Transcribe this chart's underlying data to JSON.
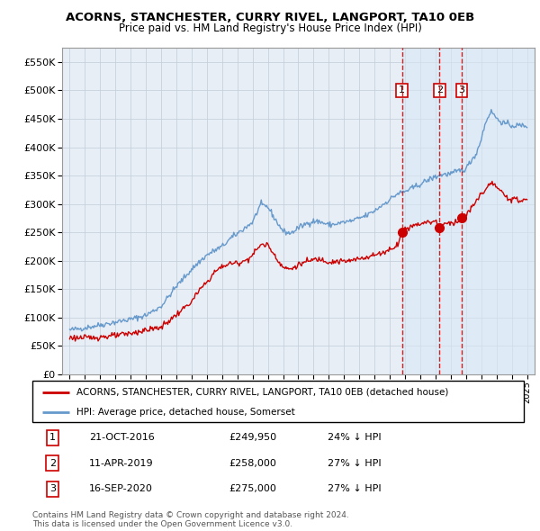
{
  "title": "ACORNS, STANCHESTER, CURRY RIVEL, LANGPORT, TA10 0EB",
  "subtitle": "Price paid vs. HM Land Registry's House Price Index (HPI)",
  "legend_line1": "ACORNS, STANCHESTER, CURRY RIVEL, LANGPORT, TA10 0EB (detached house)",
  "legend_line2": "HPI: Average price, detached house, Somerset",
  "footer_line1": "Contains HM Land Registry data © Crown copyright and database right 2024.",
  "footer_line2": "This data is licensed under the Open Government Licence v3.0.",
  "transactions": [
    {
      "num": 1,
      "date": "21-OCT-2016",
      "price_str": "£249,950",
      "pct": "24%",
      "x_year": 2016.8,
      "price_val": 249950
    },
    {
      "num": 2,
      "date": "11-APR-2019",
      "price_str": "£258,000",
      "pct": "27%",
      "x_year": 2019.27,
      "price_val": 258000
    },
    {
      "num": 3,
      "date": "16-SEP-2020",
      "price_str": "£275,000",
      "pct": "27%",
      "x_year": 2020.71,
      "price_val": 275000
    }
  ],
  "hpi_color": "#6699cc",
  "price_color": "#cc0000",
  "background_plot": "#e8eef5",
  "highlight_bg": "#d8e8f5",
  "grid_color": "#c0ccd8",
  "dashed_line_color": "#cc0000",
  "ylim": [
    0,
    575000
  ],
  "yticks": [
    0,
    50000,
    100000,
    150000,
    200000,
    250000,
    300000,
    350000,
    400000,
    450000,
    500000,
    550000
  ],
  "xlim_start": 1994.5,
  "xlim_end": 2025.5,
  "highlight_start": 2016.8,
  "hpi_keypoints": [
    [
      1995.0,
      78000
    ],
    [
      1996.0,
      82000
    ],
    [
      1997.0,
      87000
    ],
    [
      1998.0,
      92000
    ],
    [
      1999.0,
      97000
    ],
    [
      2000.0,
      104000
    ],
    [
      2001.0,
      120000
    ],
    [
      2002.0,
      155000
    ],
    [
      2003.0,
      185000
    ],
    [
      2003.5,
      198000
    ],
    [
      2004.0,
      210000
    ],
    [
      2004.5,
      218000
    ],
    [
      2005.0,
      225000
    ],
    [
      2005.5,
      238000
    ],
    [
      2006.0,
      248000
    ],
    [
      2006.5,
      258000
    ],
    [
      2007.0,
      268000
    ],
    [
      2007.5,
      298000
    ],
    [
      2008.0,
      295000
    ],
    [
      2008.5,
      272000
    ],
    [
      2009.0,
      252000
    ],
    [
      2009.5,
      248000
    ],
    [
      2010.0,
      258000
    ],
    [
      2010.5,
      265000
    ],
    [
      2011.0,
      270000
    ],
    [
      2011.5,
      268000
    ],
    [
      2012.0,
      263000
    ],
    [
      2012.5,
      265000
    ],
    [
      2013.0,
      268000
    ],
    [
      2013.5,
      270000
    ],
    [
      2014.0,
      275000
    ],
    [
      2014.5,
      280000
    ],
    [
      2015.0,
      288000
    ],
    [
      2015.5,
      298000
    ],
    [
      2016.0,
      308000
    ],
    [
      2016.5,
      318000
    ],
    [
      2017.0,
      322000
    ],
    [
      2017.5,
      328000
    ],
    [
      2018.0,
      335000
    ],
    [
      2018.5,
      342000
    ],
    [
      2019.0,
      348000
    ],
    [
      2019.5,
      352000
    ],
    [
      2020.0,
      353000
    ],
    [
      2020.5,
      358000
    ],
    [
      2021.0,
      362000
    ],
    [
      2021.3,
      375000
    ],
    [
      2021.7,
      390000
    ],
    [
      2022.0,
      415000
    ],
    [
      2022.3,
      445000
    ],
    [
      2022.6,
      462000
    ],
    [
      2022.8,
      460000
    ],
    [
      2023.0,
      450000
    ],
    [
      2023.5,
      442000
    ],
    [
      2024.0,
      438000
    ],
    [
      2024.5,
      438000
    ],
    [
      2025.0,
      438000
    ]
  ],
  "price_keypoints": [
    [
      1995.0,
      65000
    ],
    [
      1996.0,
      64000
    ],
    [
      1997.0,
      66000
    ],
    [
      1998.0,
      68000
    ],
    [
      1999.0,
      72000
    ],
    [
      2000.0,
      78000
    ],
    [
      2001.0,
      83000
    ],
    [
      2002.0,
      105000
    ],
    [
      2003.0,
      128000
    ],
    [
      2003.5,
      148000
    ],
    [
      2004.0,
      162000
    ],
    [
      2004.5,
      180000
    ],
    [
      2005.0,
      190000
    ],
    [
      2005.5,
      195000
    ],
    [
      2006.0,
      196000
    ],
    [
      2006.5,
      200000
    ],
    [
      2007.0,
      210000
    ],
    [
      2007.5,
      228000
    ],
    [
      2008.0,
      228000
    ],
    [
      2008.5,
      208000
    ],
    [
      2009.0,
      188000
    ],
    [
      2009.5,
      185000
    ],
    [
      2010.0,
      193000
    ],
    [
      2010.5,
      198000
    ],
    [
      2011.0,
      202000
    ],
    [
      2011.5,
      203000
    ],
    [
      2012.0,
      198000
    ],
    [
      2012.5,
      199000
    ],
    [
      2013.0,
      199000
    ],
    [
      2013.5,
      200000
    ],
    [
      2014.0,
      204000
    ],
    [
      2014.5,
      207000
    ],
    [
      2015.0,
      210000
    ],
    [
      2015.5,
      214000
    ],
    [
      2016.0,
      220000
    ],
    [
      2016.5,
      228000
    ],
    [
      2016.8,
      249950
    ],
    [
      2017.0,
      255000
    ],
    [
      2017.5,
      262000
    ],
    [
      2018.0,
      266000
    ],
    [
      2018.5,
      268000
    ],
    [
      2019.0,
      270000
    ],
    [
      2019.27,
      258000
    ],
    [
      2019.5,
      264000
    ],
    [
      2020.0,
      267000
    ],
    [
      2020.5,
      270000
    ],
    [
      2020.71,
      275000
    ],
    [
      2021.0,
      280000
    ],
    [
      2021.5,
      298000
    ],
    [
      2022.0,
      318000
    ],
    [
      2022.5,
      332000
    ],
    [
      2022.8,
      338000
    ],
    [
      2023.0,
      328000
    ],
    [
      2023.5,
      316000
    ],
    [
      2024.0,
      308000
    ],
    [
      2024.5,
      306000
    ],
    [
      2025.0,
      308000
    ]
  ]
}
